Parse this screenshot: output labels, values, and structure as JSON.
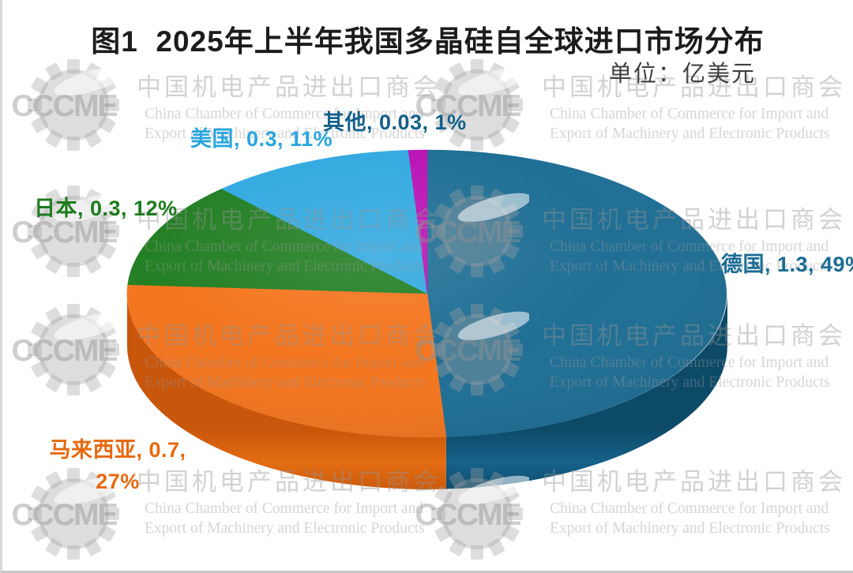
{
  "header": {
    "title": "图1  2025年上半年我国多晶硅自全球进口市场分布",
    "unit_label": "单位：亿美元"
  },
  "chart_data": {
    "type": "pie",
    "style": "3d",
    "title": "2025年上半年我国多晶硅自全球进口市场分布",
    "unit": "亿美元",
    "start_angle_deg": 0,
    "direction": "clockwise",
    "legend_position": "none",
    "slices": [
      {
        "name": "德国",
        "value": 1.3,
        "percent": 49,
        "color": "#1b6c93",
        "side_dark": "#0d4a68",
        "side_mid": "#16618a",
        "label_color": "#1a6c94"
      },
      {
        "name": "马来西亚",
        "value": 0.7,
        "percent": 27,
        "color": "#f4731a",
        "side_dark": "#c8560b",
        "side_mid": "#e36d12",
        "label_color": "#e7680e"
      },
      {
        "name": "日本",
        "value": 0.3,
        "percent": 12,
        "color": "#1f7d20",
        "side_dark": "#145c15",
        "side_mid": "#1a6e1b",
        "label_color": "#1d7b1e"
      },
      {
        "name": "美国",
        "value": 0.3,
        "percent": 11,
        "color": "#2fa8e0",
        "side_dark": "#1d83b5",
        "side_mid": "#2596cc",
        "label_color": "#29a6dd"
      },
      {
        "name": "其他",
        "value": 0.03,
        "percent": 1,
        "color": "#b80fb2",
        "side_dark": "#8c0b88",
        "side_mid": "#a00d9b",
        "label_color": "#14608a"
      }
    ]
  },
  "watermark": {
    "logo_text": "CCCME",
    "cn_line": "中国机电产品进出口商会",
    "en_line1": "China Chamber of Commerce for Import and",
    "en_line2": "Export of Machinery and Electronic Products"
  }
}
